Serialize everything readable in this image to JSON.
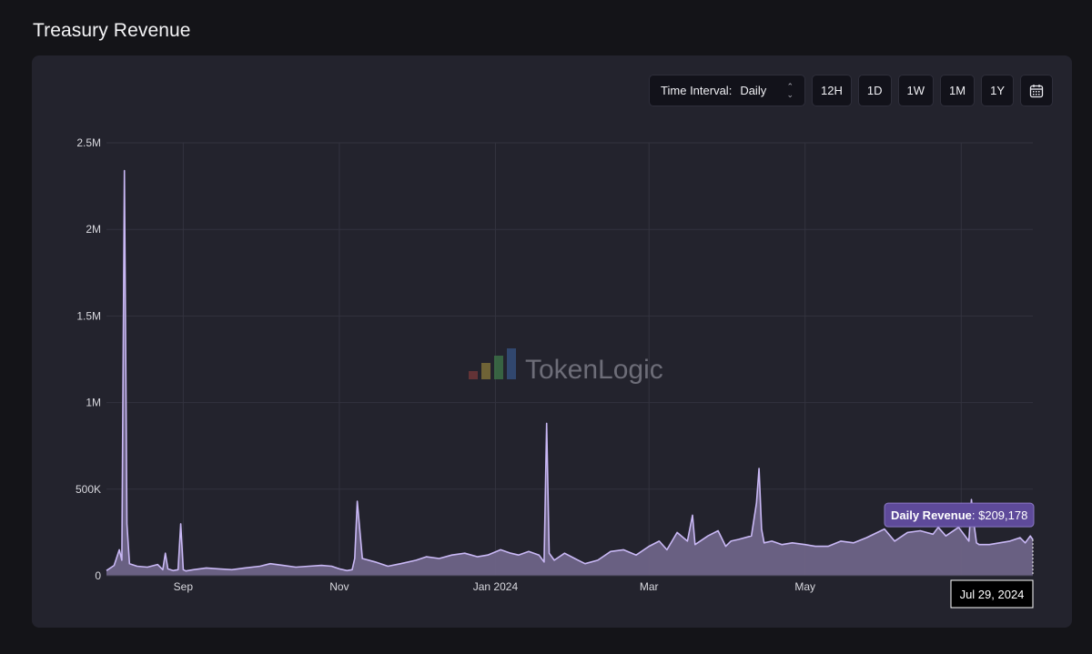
{
  "page": {
    "title": "Treasury Revenue"
  },
  "toolbar": {
    "interval_label": "Time Interval:",
    "interval_value": "Daily",
    "ranges": [
      "12H",
      "1D",
      "1W",
      "1M",
      "1Y"
    ],
    "calendar_icon": "calendar-icon"
  },
  "watermark": {
    "text": "TokenLogic",
    "icon": "bar-logo-icon"
  },
  "tooltip": {
    "series_label": "Daily Revenue",
    "value": "$209,178",
    "date": "Jul 29, 2024"
  },
  "colors": {
    "line": "#c9b8f5",
    "fill": "#6e6487",
    "tooltip_bg": "#5e4a9a",
    "panel": "#23232d"
  },
  "chart_data": {
    "type": "area",
    "xlabel": "",
    "ylabel": "",
    "x_ticks": [
      "Sep",
      "Nov",
      "Jan 2024",
      "Mar",
      "May",
      "Jul"
    ],
    "y_ticks": [
      "0",
      "500K",
      "1M",
      "1.5M",
      "2M",
      "2.5M"
    ],
    "ylim": [
      0,
      2500000
    ],
    "xlim": [
      "2023-08-02",
      "2024-07-29"
    ],
    "grid": true,
    "series": [
      {
        "name": "Daily Revenue",
        "x": [
          "2023-08-02",
          "2023-08-05",
          "2023-08-07",
          "2023-08-08",
          "2023-08-09",
          "2023-08-10",
          "2023-08-11",
          "2023-08-14",
          "2023-08-18",
          "2023-08-22",
          "2023-08-24",
          "2023-08-25",
          "2023-08-26",
          "2023-08-28",
          "2023-08-30",
          "2023-08-31",
          "2023-09-01",
          "2023-09-02",
          "2023-09-05",
          "2023-09-10",
          "2023-09-15",
          "2023-09-20",
          "2023-09-25",
          "2023-10-01",
          "2023-10-05",
          "2023-10-10",
          "2023-10-15",
          "2023-10-20",
          "2023-10-25",
          "2023-10-29",
          "2023-11-01",
          "2023-11-04",
          "2023-11-06",
          "2023-11-07",
          "2023-11-08",
          "2023-11-10",
          "2023-11-15",
          "2023-11-20",
          "2023-11-25",
          "2023-12-01",
          "2023-12-05",
          "2023-12-10",
          "2023-12-15",
          "2023-12-20",
          "2023-12-25",
          "2023-12-29",
          "2024-01-03",
          "2024-01-07",
          "2024-01-10",
          "2024-01-14",
          "2024-01-18",
          "2024-01-20",
          "2024-01-21",
          "2024-01-22",
          "2024-01-24",
          "2024-01-28",
          "2024-02-01",
          "2024-02-05",
          "2024-02-10",
          "2024-02-15",
          "2024-02-20",
          "2024-02-25",
          "2024-03-01",
          "2024-03-05",
          "2024-03-08",
          "2024-03-12",
          "2024-03-16",
          "2024-03-18",
          "2024-03-19",
          "2024-03-20",
          "2024-03-24",
          "2024-03-28",
          "2024-03-31",
          "2024-04-02",
          "2024-04-05",
          "2024-04-10",
          "2024-04-12",
          "2024-04-13",
          "2024-04-14",
          "2024-04-15",
          "2024-04-18",
          "2024-04-22",
          "2024-04-26",
          "2024-05-01",
          "2024-05-05",
          "2024-05-10",
          "2024-05-15",
          "2024-05-20",
          "2024-05-25",
          "2024-06-01",
          "2024-06-05",
          "2024-06-10",
          "2024-06-15",
          "2024-06-20",
          "2024-06-22",
          "2024-06-25",
          "2024-06-30",
          "2024-07-04",
          "2024-07-05",
          "2024-07-06",
          "2024-07-07",
          "2024-07-08",
          "2024-07-12",
          "2024-07-16",
          "2024-07-20",
          "2024-07-24",
          "2024-07-26",
          "2024-07-28",
          "2024-07-29"
        ],
        "y": [
          30000,
          60000,
          150000,
          90000,
          2340000,
          300000,
          70000,
          55000,
          50000,
          65000,
          35000,
          130000,
          40000,
          30000,
          35000,
          300000,
          35000,
          28000,
          35000,
          45000,
          40000,
          35000,
          45000,
          55000,
          70000,
          60000,
          50000,
          55000,
          60000,
          55000,
          40000,
          30000,
          35000,
          100000,
          430000,
          100000,
          80000,
          55000,
          70000,
          90000,
          110000,
          100000,
          120000,
          130000,
          110000,
          120000,
          150000,
          130000,
          120000,
          140000,
          120000,
          80000,
          880000,
          130000,
          90000,
          130000,
          100000,
          70000,
          90000,
          140000,
          150000,
          120000,
          170000,
          200000,
          150000,
          250000,
          200000,
          350000,
          180000,
          190000,
          230000,
          260000,
          170000,
          200000,
          210000,
          230000,
          420000,
          620000,
          270000,
          190000,
          200000,
          180000,
          190000,
          180000,
          170000,
          170000,
          200000,
          190000,
          220000,
          270000,
          200000,
          250000,
          260000,
          240000,
          280000,
          230000,
          280000,
          200000,
          440000,
          300000,
          190000,
          180000,
          180000,
          190000,
          200000,
          220000,
          190000,
          230000,
          209178
        ]
      }
    ]
  }
}
